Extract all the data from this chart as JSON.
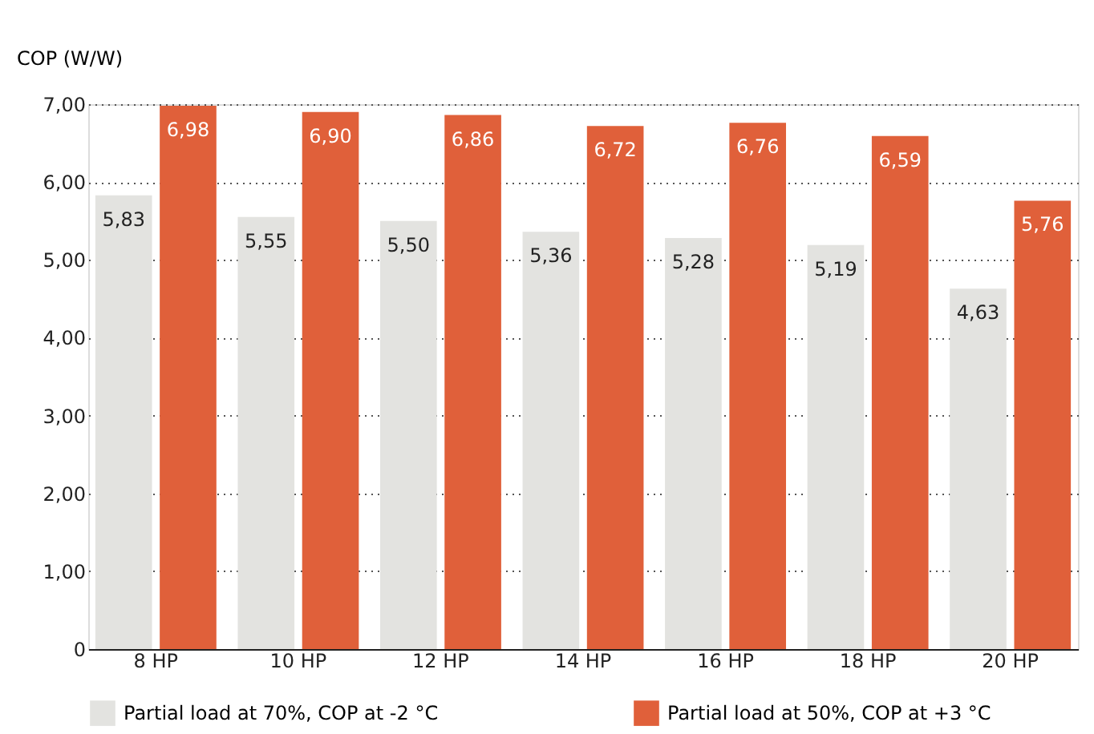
{
  "chart_data": {
    "type": "bar",
    "ylabel": "COP (W/W)",
    "categories": [
      "8 HP",
      "10 HP",
      "12 HP",
      "14 HP",
      "16 HP",
      "18 HP",
      "20 HP"
    ],
    "series": [
      {
        "name": "Partial load at 70%, COP at -2 °C",
        "color": "#e3e3e0",
        "values": [
          5.83,
          5.55,
          5.5,
          5.36,
          5.28,
          5.19,
          4.63
        ],
        "value_labels": [
          "5,83",
          "5,55",
          "5,50",
          "5,36",
          "5,28",
          "5,19",
          "4,63"
        ]
      },
      {
        "name": "Partial load at 50%, COP at +3 °C",
        "color": "#e0603a",
        "values": [
          6.98,
          6.9,
          6.86,
          6.72,
          6.76,
          6.59,
          5.76
        ],
        "value_labels": [
          "6,98",
          "6,90",
          "6,86",
          "6,72",
          "6,76",
          "6,59",
          "5,76"
        ]
      }
    ],
    "ylim": [
      0,
      7
    ],
    "yticks": [
      0,
      {
        "value": 1,
        "label": "1,00"
      },
      {
        "value": 2,
        "label": "2,00"
      },
      {
        "value": 3,
        "label": "3,00"
      },
      {
        "value": 4,
        "label": "4,00"
      },
      {
        "value": 5,
        "label": "5,00"
      },
      {
        "value": 6,
        "label": "6,00"
      },
      {
        "value": 7,
        "label": "7,00"
      }
    ],
    "grid": "y",
    "legend": "bottom"
  }
}
